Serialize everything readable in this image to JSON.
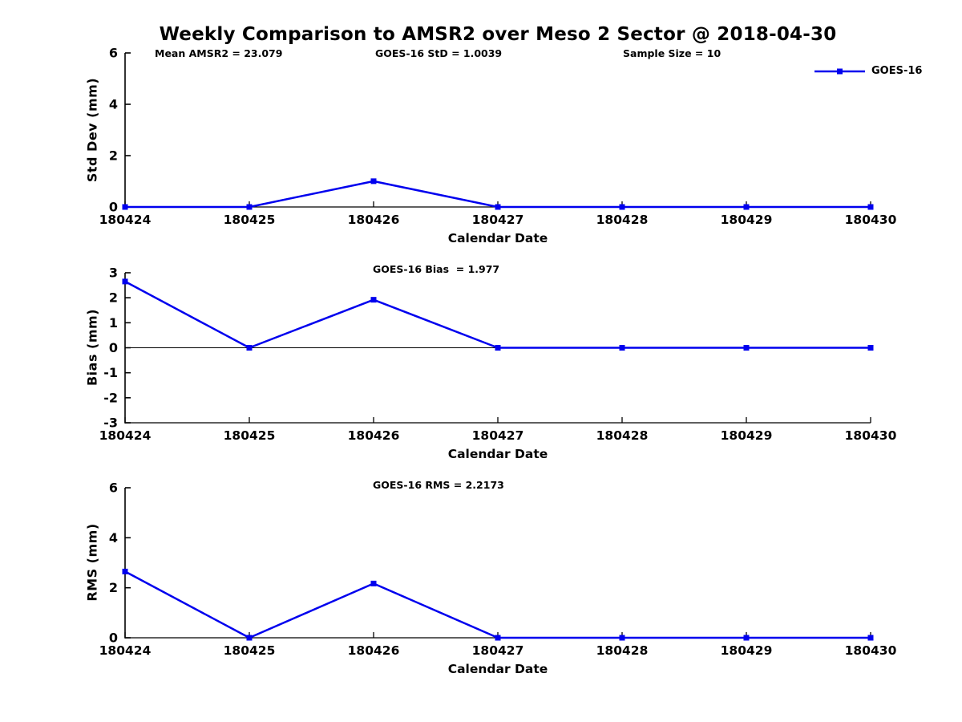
{
  "page": {
    "title": "Weekly Comparison to AMSR2 over Meso 2 Sector @ 2018-04-30"
  },
  "legend": {
    "label": "GOES-16"
  },
  "colors": {
    "series": "#0000ee",
    "axis": "#000000",
    "text": "#000000",
    "background": "#ffffff"
  },
  "chart_data": [
    {
      "type": "line",
      "name": "std-dev",
      "ylabel": "Std Dev (mm)",
      "xlabel": "Calendar Date",
      "categories": [
        "180424",
        "180425",
        "180426",
        "180427",
        "180428",
        "180429",
        "180430"
      ],
      "series": [
        {
          "name": "GOES-16",
          "values": [
            0,
            0,
            1.0039,
            0,
            0,
            0,
            0
          ]
        }
      ],
      "ylim": [
        0,
        6
      ],
      "yticks": [
        0,
        2,
        4,
        6
      ],
      "zero_line": false,
      "grid": false,
      "legend_position": "top-right",
      "annotations": [
        {
          "text": "Mean AMSR2 = 23.079"
        },
        {
          "text": "GOES-16 StD = 1.0039"
        },
        {
          "text": "Sample Size = 10"
        }
      ]
    },
    {
      "type": "line",
      "name": "bias",
      "ylabel": "Bias (mm)",
      "xlabel": "Calendar Date",
      "categories": [
        "180424",
        "180425",
        "180426",
        "180427",
        "180428",
        "180429",
        "180430"
      ],
      "series": [
        {
          "name": "GOES-16",
          "values": [
            2.65,
            0,
            1.92,
            0,
            0,
            0,
            0
          ]
        }
      ],
      "ylim": [
        -3,
        3
      ],
      "yticks": [
        -3,
        -2,
        -1,
        0,
        1,
        2,
        3
      ],
      "zero_line": true,
      "grid": false,
      "annotations": [
        {
          "text": "GOES-16 Bias  = 1.977"
        }
      ]
    },
    {
      "type": "line",
      "name": "rms",
      "ylabel": "RMS (mm)",
      "xlabel": "Calendar Date",
      "categories": [
        "180424",
        "180425",
        "180426",
        "180427",
        "180428",
        "180429",
        "180430"
      ],
      "series": [
        {
          "name": "GOES-16",
          "values": [
            2.65,
            0,
            2.17,
            0,
            0,
            0,
            0
          ]
        }
      ],
      "ylim": [
        0,
        6
      ],
      "yticks": [
        0,
        2,
        4,
        6
      ],
      "zero_line": false,
      "grid": false,
      "annotations": [
        {
          "text": "GOES-16 RMS = 2.2173"
        }
      ]
    }
  ]
}
